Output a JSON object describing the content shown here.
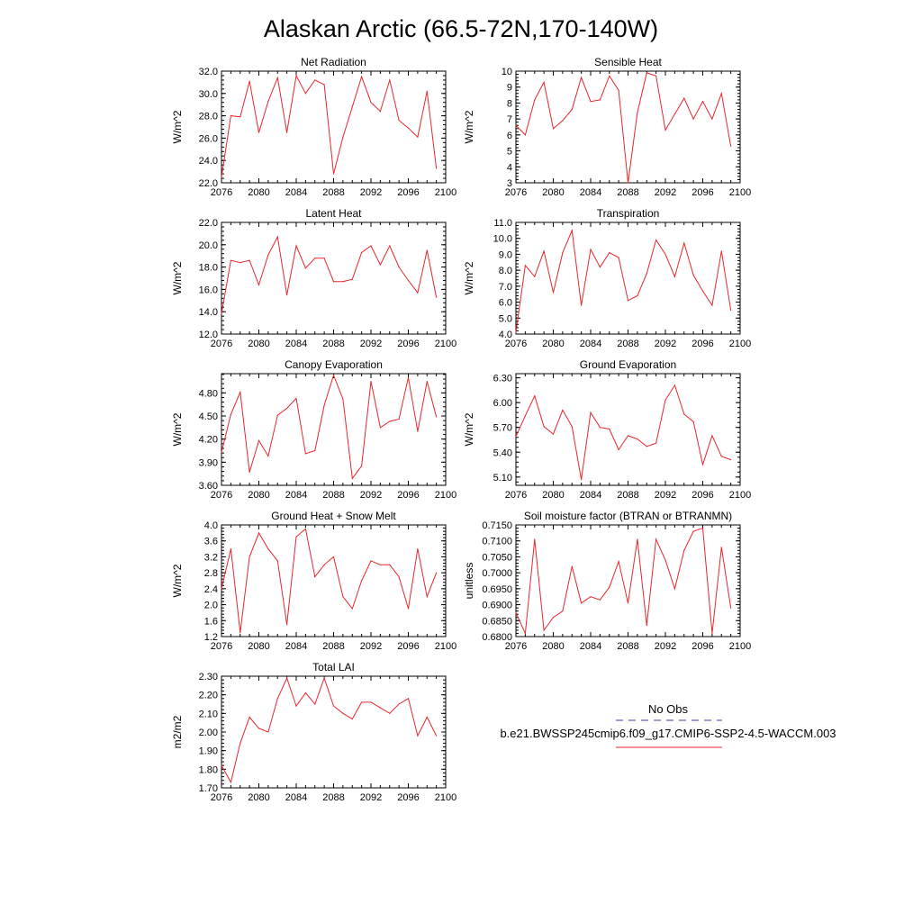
{
  "title": "Alaskan Arctic (66.5-72N,170-140W)",
  "x_ticks": [
    "2076",
    "2080",
    "2084",
    "2088",
    "2092",
    "2096",
    "2100"
  ],
  "colors": {
    "model": "#e8262c",
    "obs": "#3b3b9e",
    "axes": "#000000"
  },
  "legend": {
    "obs_label": "No Obs",
    "model_label": "b.e21.BWSSP245cmip6.f09_g17.CMIP6-SSP2-4.5-WACCM.003"
  },
  "chart_data": [
    {
      "type": "line",
      "title": "Net Radiation",
      "ylabel": "W/m^2",
      "xlim": [
        2076,
        2100
      ],
      "ylim": [
        22.0,
        32.0
      ],
      "yticks": [
        "22.0",
        "24.0",
        "26.0",
        "28.0",
        "30.0",
        "32.0"
      ],
      "x": [
        2076,
        2077,
        2078,
        2079,
        2080,
        2081,
        2082,
        2083,
        2084,
        2085,
        2086,
        2087,
        2088,
        2089,
        2090,
        2091,
        2092,
        2093,
        2094,
        2095,
        2096,
        2097,
        2098,
        2099
      ],
      "series": [
        {
          "values": [
            22.5,
            28.0,
            27.9,
            31.1,
            26.5,
            29.3,
            31.4,
            26.5,
            31.6,
            30.0,
            31.2,
            30.8,
            22.8,
            26.1,
            28.8,
            31.5,
            29.2,
            28.4,
            31.2,
            27.6,
            26.9,
            26.1,
            30.2,
            23.3
          ]
        }
      ]
    },
    {
      "type": "line",
      "title": "Sensible Heat",
      "ylabel": "W/m^2",
      "xlim": [
        2076,
        2100
      ],
      "ylim": [
        3,
        10
      ],
      "yticks": [
        "3",
        "4",
        "5",
        "6",
        "7",
        "8",
        "9",
        "10"
      ],
      "x": [
        2076,
        2077,
        2078,
        2079,
        2080,
        2081,
        2082,
        2083,
        2084,
        2085,
        2086,
        2087,
        2088,
        2089,
        2090,
        2091,
        2092,
        2093,
        2094,
        2095,
        2096,
        2097,
        2098,
        2099
      ],
      "series": [
        {
          "values": [
            6.6,
            6.0,
            8.2,
            9.3,
            6.4,
            6.9,
            7.6,
            9.6,
            8.1,
            8.2,
            9.7,
            8.8,
            3.0,
            7.4,
            9.9,
            9.7,
            6.3,
            7.3,
            8.3,
            7.0,
            8.1,
            7.0,
            8.6,
            5.3
          ]
        }
      ]
    },
    {
      "type": "line",
      "title": "Latent Heat",
      "ylabel": "W/m^2",
      "xlim": [
        2076,
        2100
      ],
      "ylim": [
        12.0,
        22.0
      ],
      "yticks": [
        "12.0",
        "14.0",
        "16.0",
        "18.0",
        "20.0",
        "22.0"
      ],
      "x": [
        2076,
        2077,
        2078,
        2079,
        2080,
        2081,
        2082,
        2083,
        2084,
        2085,
        2086,
        2087,
        2088,
        2089,
        2090,
        2091,
        2092,
        2093,
        2094,
        2095,
        2096,
        2097,
        2098,
        2099
      ],
      "series": [
        {
          "values": [
            13.8,
            18.6,
            18.4,
            18.6,
            16.4,
            19.1,
            20.7,
            15.5,
            19.9,
            17.9,
            18.8,
            18.8,
            16.7,
            16.7,
            16.9,
            19.3,
            19.9,
            18.2,
            19.9,
            18.0,
            16.8,
            15.7,
            19.5,
            15.3
          ]
        }
      ]
    },
    {
      "type": "line",
      "title": "Transpiration",
      "ylabel": "W/m^2",
      "xlim": [
        2076,
        2100
      ],
      "ylim": [
        4.0,
        11.0
      ],
      "yticks": [
        "4.0",
        "5.0",
        "6.0",
        "7.0",
        "8.0",
        "9.0",
        "10.0",
        "11.0"
      ],
      "x": [
        2076,
        2077,
        2078,
        2079,
        2080,
        2081,
        2082,
        2083,
        2084,
        2085,
        2086,
        2087,
        2088,
        2089,
        2090,
        2091,
        2092,
        2093,
        2094,
        2095,
        2096,
        2097,
        2098,
        2099
      ],
      "series": [
        {
          "values": [
            4.1,
            8.3,
            7.6,
            9.2,
            6.6,
            9.1,
            10.5,
            5.8,
            9.3,
            8.2,
            9.1,
            8.8,
            6.1,
            6.4,
            7.8,
            9.9,
            9.0,
            7.6,
            9.7,
            7.7,
            6.7,
            5.8,
            9.2,
            5.5
          ]
        }
      ]
    },
    {
      "type": "line",
      "title": "Canopy Evaporation",
      "ylabel": "W/m^2",
      "xlim": [
        2076,
        2100
      ],
      "ylim": [
        3.6,
        5.05
      ],
      "yticks": [
        "3.60",
        "3.90",
        "4.20",
        "4.50",
        "4.80"
      ],
      "x": [
        2076,
        2077,
        2078,
        2079,
        2080,
        2081,
        2082,
        2083,
        2084,
        2085,
        2086,
        2087,
        2088,
        2089,
        2090,
        2091,
        2092,
        2093,
        2094,
        2095,
        2096,
        2097,
        2098,
        2099
      ],
      "series": [
        {
          "values": [
            4.03,
            4.52,
            4.81,
            3.77,
            4.18,
            3.98,
            4.51,
            4.6,
            4.73,
            4.01,
            4.05,
            4.64,
            5.03,
            4.72,
            3.69,
            3.85,
            4.95,
            4.35,
            4.43,
            4.46,
            5.0,
            4.3,
            4.95,
            4.49
          ]
        }
      ]
    },
    {
      "type": "line",
      "title": "Ground Evaporation",
      "ylabel": "W/m^2",
      "xlim": [
        2076,
        2100
      ],
      "ylim": [
        5.0,
        6.35
      ],
      "yticks": [
        "5.10",
        "5.40",
        "5.70",
        "6.00",
        "6.30"
      ],
      "x": [
        2076,
        2077,
        2078,
        2079,
        2080,
        2081,
        2082,
        2083,
        2084,
        2085,
        2086,
        2087,
        2088,
        2089,
        2090,
        2091,
        2092,
        2093,
        2094,
        2095,
        2096,
        2097,
        2098,
        2099
      ],
      "series": [
        {
          "values": [
            5.59,
            5.84,
            6.08,
            5.71,
            5.62,
            5.91,
            5.71,
            5.07,
            5.88,
            5.7,
            5.68,
            5.43,
            5.6,
            5.56,
            5.47,
            5.51,
            6.03,
            6.21,
            5.86,
            5.77,
            5.25,
            5.6,
            5.35,
            5.31
          ]
        }
      ]
    },
    {
      "type": "line",
      "title": "Ground Heat + Snow Melt",
      "ylabel": "W/m^2",
      "xlim": [
        2076,
        2100
      ],
      "ylim": [
        1.2,
        4.0
      ],
      "yticks": [
        "1.2",
        "1.6",
        "2.0",
        "2.4",
        "2.8",
        "3.2",
        "3.6",
        "4.0"
      ],
      "x": [
        2076,
        2077,
        2078,
        2079,
        2080,
        2081,
        2082,
        2083,
        2084,
        2085,
        2086,
        2087,
        2088,
        2089,
        2090,
        2091,
        2092,
        2093,
        2094,
        2095,
        2096,
        2097,
        2098,
        2099
      ],
      "series": [
        {
          "values": [
            2.4,
            3.4,
            1.3,
            3.2,
            3.8,
            3.4,
            3.1,
            1.5,
            3.7,
            3.9,
            2.7,
            3.0,
            3.2,
            2.2,
            1.9,
            2.6,
            3.1,
            3.0,
            3.0,
            2.7,
            1.9,
            3.4,
            2.2,
            2.8
          ]
        }
      ]
    },
    {
      "type": "line",
      "title": "Soil moisture factor (BTRAN or BTRANMN)",
      "ylabel": "unitless",
      "xlim": [
        2076,
        2100
      ],
      "ylim": [
        0.68,
        0.715
      ],
      "yticks": [
        "0.6800",
        "0.6850",
        "0.6900",
        "0.6950",
        "0.7000",
        "0.7050",
        "0.7100",
        "0.7150"
      ],
      "x": [
        2076,
        2077,
        2078,
        2079,
        2080,
        2081,
        2082,
        2083,
        2084,
        2085,
        2086,
        2087,
        2088,
        2089,
        2090,
        2091,
        2092,
        2093,
        2094,
        2095,
        2096,
        2097,
        2098,
        2099
      ],
      "series": [
        {
          "values": [
            0.6875,
            0.681,
            0.7105,
            0.682,
            0.686,
            0.688,
            0.702,
            0.6905,
            0.6925,
            0.6915,
            0.6955,
            0.7035,
            0.6905,
            0.7105,
            0.6835,
            0.7105,
            0.704,
            0.695,
            0.707,
            0.713,
            0.714,
            0.681,
            0.708,
            0.689
          ]
        }
      ]
    },
    {
      "type": "line",
      "title": "Total LAI",
      "ylabel": "m2/m2",
      "xlim": [
        2076,
        2100
      ],
      "ylim": [
        1.7,
        2.3
      ],
      "yticks": [
        "1.70",
        "1.80",
        "1.90",
        "2.00",
        "2.10",
        "2.20",
        "2.30"
      ],
      "x": [
        2076,
        2077,
        2078,
        2079,
        2080,
        2081,
        2082,
        2083,
        2084,
        2085,
        2086,
        2087,
        2088,
        2089,
        2090,
        2091,
        2092,
        2093,
        2094,
        2095,
        2096,
        2097,
        2098,
        2099
      ],
      "series": [
        {
          "values": [
            1.82,
            1.73,
            1.94,
            2.08,
            2.02,
            2.0,
            2.18,
            2.29,
            2.14,
            2.21,
            2.15,
            2.29,
            2.14,
            2.1,
            2.07,
            2.16,
            2.16,
            2.13,
            2.1,
            2.15,
            2.18,
            1.98,
            2.08,
            1.98
          ]
        }
      ]
    }
  ]
}
